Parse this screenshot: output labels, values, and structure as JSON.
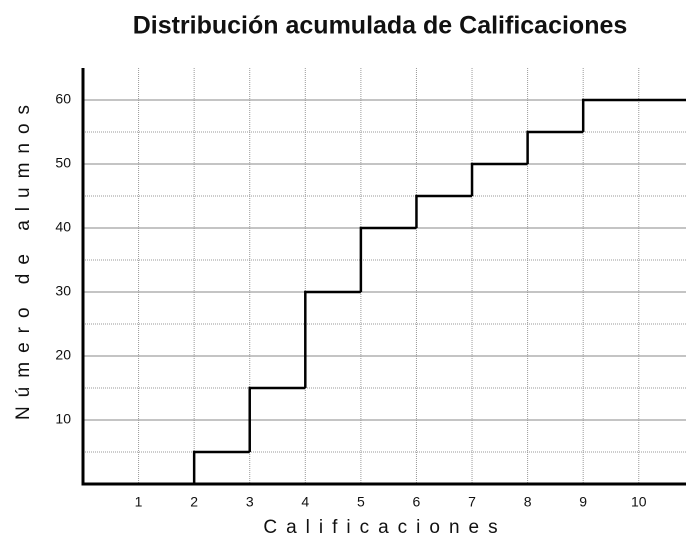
{
  "chart_data": {
    "type": "step",
    "title": "Distribución acumulada de Calificaciones",
    "xlabel": "Calificaciones",
    "ylabel": "Número de alumnos",
    "x": [
      2,
      3,
      4,
      5,
      6,
      7,
      8,
      9
    ],
    "values": [
      5,
      15,
      30,
      40,
      45,
      50,
      55,
      60
    ],
    "color": "#000000",
    "xlim": [
      0,
      10.85
    ],
    "ylim": [
      0,
      65
    ],
    "xticks": [
      1,
      2,
      3,
      4,
      5,
      6,
      7,
      8,
      9,
      10
    ],
    "yticks": [
      10,
      20,
      30,
      40,
      50,
      60
    ],
    "yminor": [
      5,
      15,
      25,
      35,
      45,
      55
    ],
    "grid": true
  }
}
